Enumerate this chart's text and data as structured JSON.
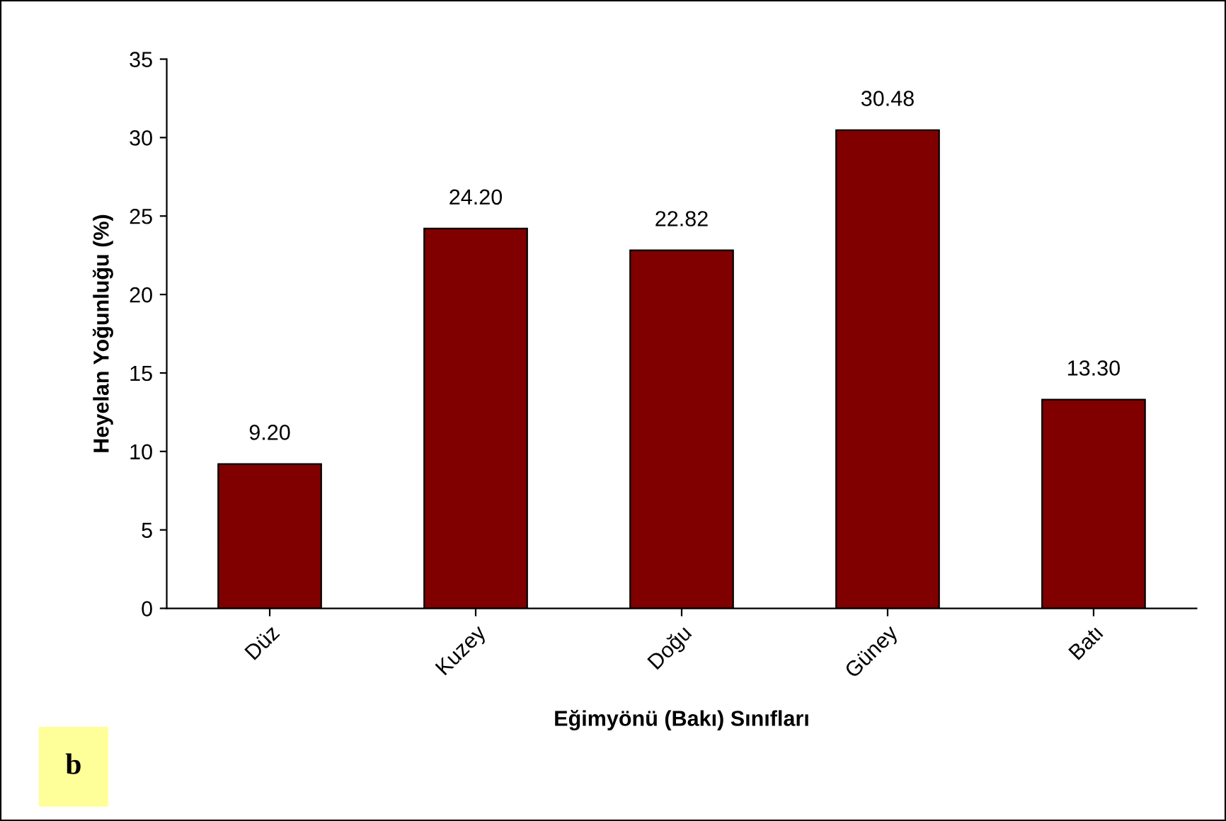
{
  "chart_data": {
    "type": "bar",
    "xlabel": "Eğimyönü (Bakı) Sınıfları",
    "ylabel": "Heyelan Yoğunluğu (%)",
    "categories": [
      "Düz",
      "Kuzey",
      "Doğu",
      "Güney",
      "Batı"
    ],
    "values": [
      9.2,
      24.2,
      22.82,
      30.48,
      13.3
    ],
    "value_labels": [
      "9.20",
      "24.20",
      "22.82",
      "30.48",
      "13.30"
    ],
    "color": "#800000",
    "ylim": [
      0,
      35
    ],
    "yticks": [
      0,
      5,
      10,
      15,
      20,
      25,
      30,
      35
    ],
    "grid": false,
    "annotations": [
      "b"
    ]
  }
}
